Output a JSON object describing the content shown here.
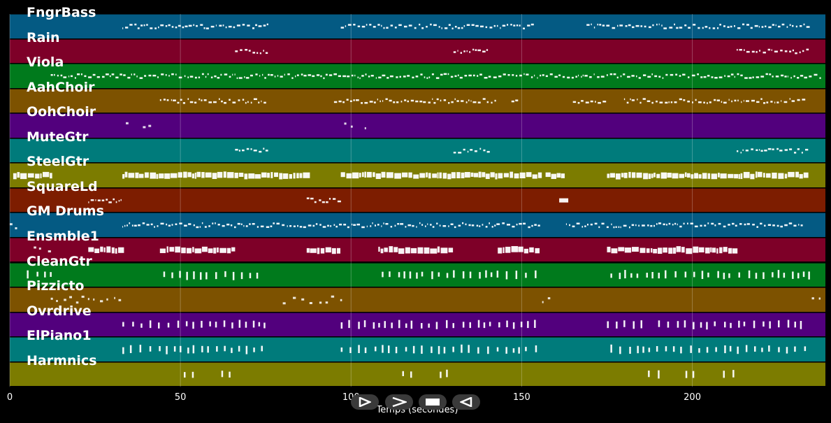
{
  "tracks": [
    {
      "name": "FngrBass",
      "color": "#045a83"
    },
    {
      "name": "Rain",
      "color": "#7e0028"
    },
    {
      "name": "Viola",
      "color": "#007a1c"
    },
    {
      "name": "AahChoir",
      "color": "#7d5200"
    },
    {
      "name": "OohChoir",
      "color": "#52007d"
    },
    {
      "name": "MuteGtr",
      "color": "#007b7b"
    },
    {
      "name": "SteelGtr",
      "color": "#7c7c00"
    },
    {
      "name": "SquareLd",
      "color": "#7d1d00"
    },
    {
      "name": "GM Drums",
      "color": "#045a83"
    },
    {
      "name": "Ensmble1",
      "color": "#7e0028"
    },
    {
      "name": "CleanGtr",
      "color": "#007a1c"
    },
    {
      "name": "Pizzicto",
      "color": "#7d5200"
    },
    {
      "name": "Ovrdrive",
      "color": "#52007d"
    },
    {
      "name": "ElPiano1",
      "color": "#007b7b"
    },
    {
      "name": "Harmnics",
      "color": "#7c7c00"
    }
  ],
  "axis": {
    "label": "Temps (secondes)",
    "ticks": [
      "0",
      "50",
      "100",
      "150",
      "200"
    ],
    "tick_values": [
      0,
      50,
      100,
      150,
      200
    ],
    "range_seconds": [
      0,
      239
    ]
  },
  "note_segments": [
    [
      [
        33,
        76,
        "dense"
      ],
      [
        97,
        154,
        "dense"
      ],
      [
        169,
        234,
        "dense"
      ]
    ],
    [
      [
        66,
        76,
        "dense"
      ],
      [
        130,
        140,
        "dense"
      ],
      [
        213,
        234,
        "dense"
      ]
    ],
    [
      [
        12,
        240,
        "dense"
      ]
    ],
    [
      [
        44,
        75,
        "dense"
      ],
      [
        95,
        143,
        "dense"
      ],
      [
        147,
        149,
        "dense"
      ],
      [
        165,
        175,
        "dense"
      ],
      [
        180,
        233,
        "dense"
      ]
    ],
    [
      [
        34,
        36,
        "sparse"
      ],
      [
        39,
        41,
        "sparse"
      ],
      [
        98,
        100,
        "sparse"
      ],
      [
        104,
        106,
        "sparse"
      ]
    ],
    [
      [
        66,
        76,
        "dense"
      ],
      [
        130,
        140,
        "dense"
      ],
      [
        213,
        234,
        "dense"
      ]
    ],
    [
      [
        1,
        12,
        "thick"
      ],
      [
        33,
        86,
        "thick"
      ],
      [
        97,
        155,
        "thick"
      ],
      [
        157,
        162,
        "thick"
      ],
      [
        175,
        233,
        "thick"
      ]
    ],
    [
      [
        23,
        33,
        "dense"
      ],
      [
        87,
        97,
        "dense"
      ],
      [
        161,
        164,
        "block"
      ]
    ],
    [
      [
        0,
        2,
        "sparse"
      ],
      [
        33,
        155,
        "dense"
      ],
      [
        163,
        233,
        "dense"
      ]
    ],
    [
      [
        7,
        12,
        "sparse"
      ],
      [
        23,
        32,
        "thick"
      ],
      [
        44,
        65,
        "thick"
      ],
      [
        87,
        97,
        "thick"
      ],
      [
        108,
        129,
        "thick"
      ],
      [
        143,
        155,
        "thick"
      ],
      [
        175,
        212,
        "thick"
      ]
    ],
    [
      [
        5,
        12,
        "bars"
      ],
      [
        45,
        75,
        "bars"
      ],
      [
        109,
        155,
        "bars"
      ],
      [
        176,
        234,
        "bars"
      ]
    ],
    [
      [
        12,
        33,
        "sparse"
      ],
      [
        80,
        97,
        "sparse"
      ],
      [
        156,
        160,
        "sparse"
      ],
      [
        235,
        239,
        "sparse"
      ]
    ],
    [
      [
        33,
        75,
        "bars"
      ],
      [
        97,
        155,
        "bars"
      ],
      [
        175,
        186,
        "bars"
      ],
      [
        190,
        232,
        "bars"
      ]
    ],
    [
      [
        33,
        75,
        "bars"
      ],
      [
        97,
        155,
        "bars"
      ],
      [
        176,
        234,
        "bars"
      ]
    ],
    [
      [
        51,
        54,
        "bars"
      ],
      [
        62,
        65,
        "bars"
      ],
      [
        115,
        118,
        "bars"
      ],
      [
        126,
        129,
        "bars"
      ],
      [
        187,
        190,
        "bars"
      ],
      [
        198,
        201,
        "bars"
      ],
      [
        209,
        212,
        "bars"
      ]
    ]
  ],
  "controls": [
    {
      "name": "play-forward",
      "symbol": "▷"
    },
    {
      "name": "next",
      "symbol": "≻"
    },
    {
      "name": "stop",
      "symbol": "■"
    },
    {
      "name": "rewind",
      "symbol": "◁"
    }
  ]
}
